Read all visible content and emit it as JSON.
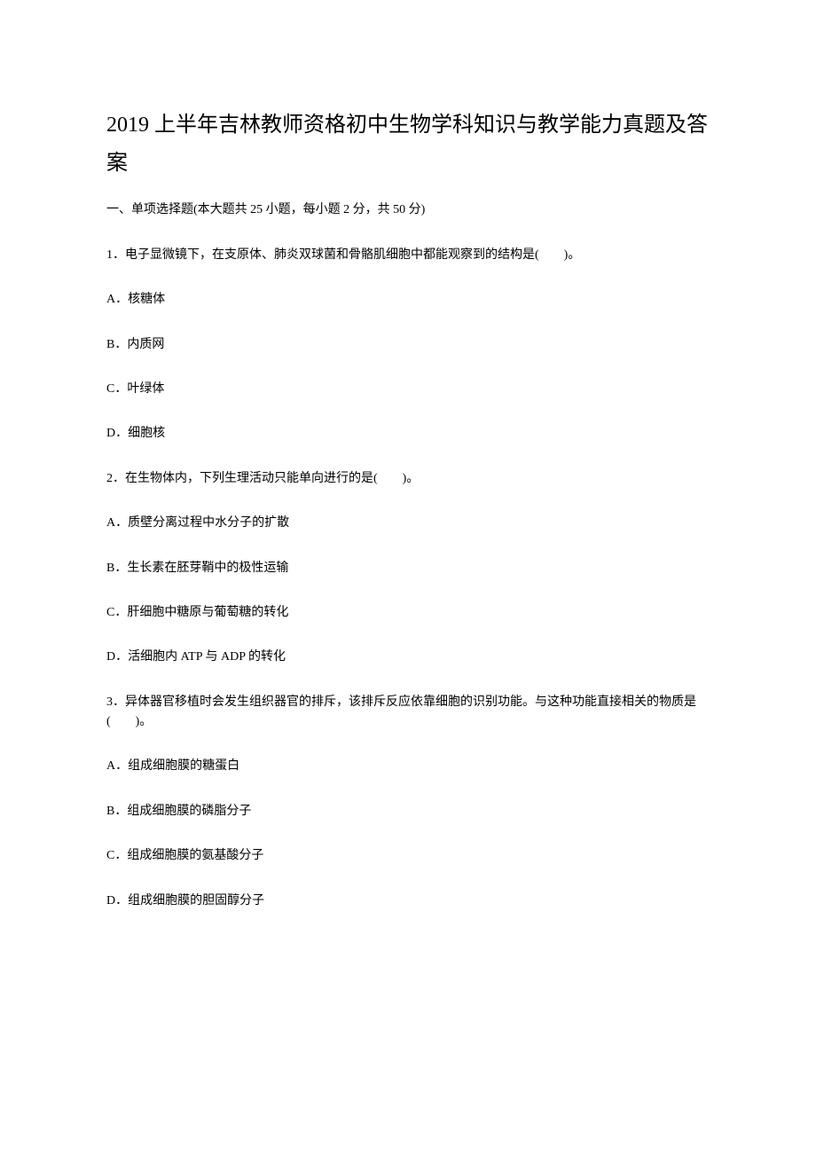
{
  "title": "2019 上半年吉林教师资格初中生物学科知识与教学能力真题及答案",
  "section_header": "一、单项选择题(本大题共 25 小题，每小题 2 分，共 50 分)",
  "questions": [
    {
      "text": "1．电子显微镜下，在支原体、肺炎双球菌和骨骼肌细胞中都能观察到的结构是(　　)。",
      "options": [
        "A．核糖体",
        "B．内质网",
        "C．叶绿体",
        "D．细胞核"
      ]
    },
    {
      "text": "2．在生物体内，下列生理活动只能单向进行的是(　　)。",
      "options": [
        "A．质壁分离过程中水分子的扩散",
        "B．生长素在胚芽鞘中的极性运输",
        "C．肝细胞中糖原与葡萄糖的转化",
        "D．活细胞内 ATP 与 ADP 的转化"
      ]
    },
    {
      "text": "3．异体器官移植时会发生组织器官的排斥，该排斥反应依靠细胞的识别功能。与这种功能直接相关的物质是(　　)。",
      "options": [
        "A．组成细胞膜的糖蛋白",
        "B．组成细胞膜的磷脂分子",
        "C．组成细胞膜的氨基酸分子",
        "D．组成细胞膜的胆固醇分子"
      ]
    }
  ],
  "style": {
    "title_fontsize": 24,
    "body_fontsize": 14,
    "text_color": "#000000",
    "background_color": "#ffffff",
    "paragraph_spacing": 28
  }
}
